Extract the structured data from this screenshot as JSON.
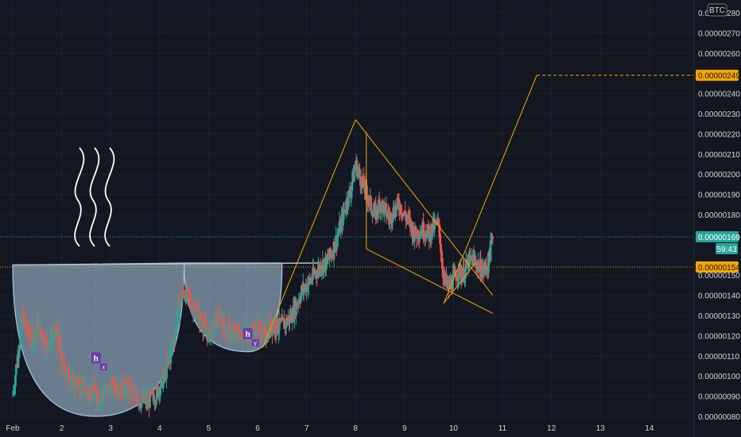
{
  "colors": {
    "background": "#131722",
    "grid": "#1e222d",
    "axis_text": "#d1d4dc",
    "candle_up": "#26a69a",
    "candle_down": "#ef5350",
    "pattern_line": "#f7a600",
    "bowl_fill": "#b2d2ea",
    "bowl_stroke": "#a7c4dc",
    "current_tag": "#26a69a",
    "level_tag": "#f7a600",
    "marker": "#6a3fa6"
  },
  "chart_data": {
    "type": "candlestick",
    "currency_label": "BTC",
    "x_axis": {
      "labels": [
        "Feb",
        "2",
        "3",
        "4",
        "5",
        "6",
        "7",
        "8",
        "9",
        "10",
        "11",
        "12",
        "13",
        "14"
      ],
      "day_values": [
        1,
        2,
        3,
        4,
        5,
        6,
        7,
        8,
        9,
        10,
        11,
        12,
        13,
        14
      ]
    },
    "y_axis": {
      "range": [
        8e-07,
        2.8e-06
      ],
      "tick_labels": [
        "0.00000280",
        "0.00000270",
        "0.00000260",
        "0.00000240",
        "0.00000230",
        "0.00000220",
        "0.00000210",
        "0.00000200",
        "0.00000190",
        "0.00000180",
        "0.00000150",
        "0.00000140",
        "0.00000130",
        "0.00000120",
        "0.00000110",
        "0.00000100",
        "0.00000090",
        "0.00000080"
      ],
      "tick_values": [
        2.8e-06,
        2.7e-06,
        2.6e-06,
        2.4e-06,
        2.3e-06,
        2.2e-06,
        2.1e-06,
        2e-06,
        1.9e-06,
        1.8e-06,
        1.5e-06,
        1.4e-06,
        1.3e-06,
        1.2e-06,
        1.1e-06,
        1e-06,
        9e-07,
        8e-07
      ]
    },
    "price_tags": [
      {
        "label": "0.00000249",
        "value": 2.49e-06,
        "kind": "level"
      },
      {
        "label": "0.00000169",
        "value": 1.69e-06,
        "kind": "current"
      },
      {
        "label": "59:43",
        "kind": "countdown"
      },
      {
        "label": "0.00000154",
        "value": 1.54e-06,
        "kind": "level"
      }
    ],
    "price_path": [
      [
        1.0,
        0.9
      ],
      [
        1.1,
        1.1
      ],
      [
        1.2,
        1.3
      ],
      [
        1.3,
        1.22
      ],
      [
        1.4,
        1.18
      ],
      [
        1.5,
        1.25
      ],
      [
        1.6,
        1.2
      ],
      [
        1.7,
        1.15
      ],
      [
        1.8,
        1.2
      ],
      [
        1.9,
        1.23
      ],
      [
        2.0,
        1.05
      ],
      [
        2.1,
        1.02
      ],
      [
        2.2,
        0.98
      ],
      [
        2.3,
        0.96
      ],
      [
        2.4,
        0.95
      ],
      [
        2.5,
        0.93
      ],
      [
        2.6,
        0.92
      ],
      [
        2.7,
        0.91
      ],
      [
        2.8,
        0.9
      ],
      [
        2.9,
        0.93
      ],
      [
        3.0,
        0.95
      ],
      [
        3.1,
        0.96
      ],
      [
        3.2,
        0.93
      ],
      [
        3.3,
        0.95
      ],
      [
        3.4,
        0.92
      ],
      [
        3.5,
        0.9
      ],
      [
        3.6,
        0.88
      ],
      [
        3.7,
        0.87
      ],
      [
        3.8,
        0.88
      ],
      [
        3.9,
        0.9
      ],
      [
        4.0,
        0.95
      ],
      [
        4.1,
        1.0
      ],
      [
        4.2,
        1.08
      ],
      [
        4.3,
        1.2
      ],
      [
        4.4,
        1.35
      ],
      [
        4.5,
        1.42
      ],
      [
        4.6,
        1.38
      ],
      [
        4.7,
        1.33
      ],
      [
        4.8,
        1.3
      ],
      [
        4.9,
        1.25
      ],
      [
        5.0,
        1.2
      ],
      [
        5.1,
        1.25
      ],
      [
        5.2,
        1.3
      ],
      [
        5.3,
        1.26
      ],
      [
        5.4,
        1.22
      ],
      [
        5.5,
        1.2
      ],
      [
        5.6,
        1.22
      ],
      [
        5.7,
        1.2
      ],
      [
        5.8,
        1.21
      ],
      [
        5.9,
        1.22
      ],
      [
        6.0,
        1.24
      ],
      [
        6.1,
        1.2
      ],
      [
        6.2,
        1.22
      ],
      [
        6.3,
        1.25
      ],
      [
        6.4,
        1.24
      ],
      [
        6.5,
        1.25
      ],
      [
        6.6,
        1.27
      ],
      [
        6.7,
        1.3
      ],
      [
        6.8,
        1.36
      ],
      [
        6.9,
        1.42
      ],
      [
        7.0,
        1.45
      ],
      [
        7.1,
        1.48
      ],
      [
        7.2,
        1.52
      ],
      [
        7.3,
        1.55
      ],
      [
        7.4,
        1.56
      ],
      [
        7.5,
        1.6
      ],
      [
        7.6,
        1.67
      ],
      [
        7.7,
        1.75
      ],
      [
        7.8,
        1.85
      ],
      [
        7.9,
        1.92
      ],
      [
        8.0,
        2.05
      ],
      [
        8.1,
        1.98
      ],
      [
        8.2,
        1.92
      ],
      [
        8.3,
        1.85
      ],
      [
        8.4,
        1.8
      ],
      [
        8.5,
        1.86
      ],
      [
        8.6,
        1.82
      ],
      [
        8.7,
        1.78
      ],
      [
        8.8,
        1.83
      ],
      [
        8.9,
        1.85
      ],
      [
        9.0,
        1.8
      ],
      [
        9.1,
        1.76
      ],
      [
        9.2,
        1.7
      ],
      [
        9.3,
        1.72
      ],
      [
        9.4,
        1.73
      ],
      [
        9.5,
        1.7
      ],
      [
        9.6,
        1.74
      ],
      [
        9.7,
        1.75
      ],
      [
        9.8,
        1.48
      ],
      [
        9.9,
        1.44
      ],
      [
        10.0,
        1.48
      ],
      [
        10.1,
        1.52
      ],
      [
        10.2,
        1.5
      ],
      [
        10.3,
        1.56
      ],
      [
        10.4,
        1.58
      ],
      [
        10.5,
        1.55
      ],
      [
        10.6,
        1.52
      ],
      [
        10.7,
        1.55
      ],
      [
        10.8,
        1.69
      ]
    ],
    "drawings": {
      "cup_rim": [
        [
          1.0,
          1.55
        ],
        [
          4.5,
          1.56
        ],
        [
          7.3,
          1.56
        ]
      ],
      "first_cup_bottom": [
        2.7,
        0.8
      ],
      "second_cup_bottom": [
        5.8,
        1.12
      ],
      "projection_peak": [
        8.0,
        2.27
      ],
      "target_level": 2.49,
      "markers": [
        {
          "text": "h",
          "sub": "x"
        },
        {
          "text": "h",
          "sub": "y"
        }
      ]
    }
  }
}
